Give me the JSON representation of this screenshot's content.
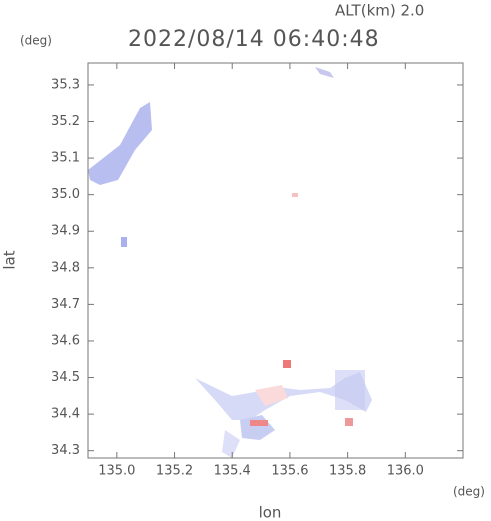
{
  "chart_data": {
    "type": "map",
    "title": "2022/08/14 06:40:48",
    "subtitle": "ALT(km) 2.0",
    "x_label": "lon",
    "y_label": "lat",
    "x_unit": "(deg)",
    "y_unit": "(deg)",
    "xlim": [
      134.9,
      136.2
    ],
    "ylim": [
      34.28,
      35.36
    ],
    "xticks": [
      {
        "value": 135,
        "label": "135.0"
      },
      135.2,
      135.4,
      135.6,
      135.8,
      {
        "value": 136,
        "label": "136.0"
      }
    ],
    "yticks": [
      34.3,
      34.4,
      34.5,
      34.6,
      34.7,
      34.8,
      34.9,
      {
        "value": 35,
        "label": "35.0"
      },
      35.1,
      35.2,
      35.3
    ]
  }
}
